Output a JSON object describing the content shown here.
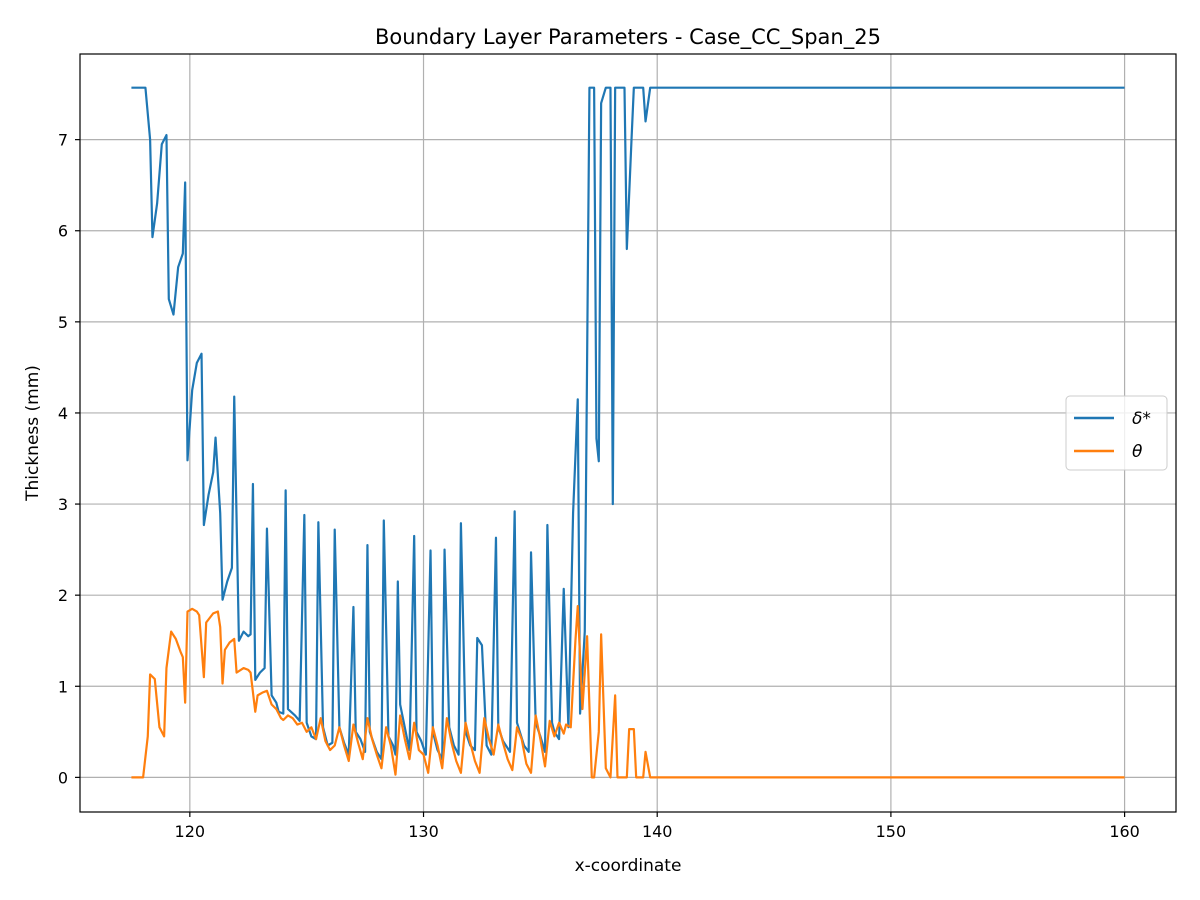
{
  "chart_data": {
    "type": "line",
    "title": "Boundary Layer Parameters - Case_CC_Span_25",
    "xlabel": "x-coordinate",
    "ylabel": "Thickness (mm)",
    "xlim": [
      115.3,
      162.2
    ],
    "ylim": [
      -0.38,
      7.94
    ],
    "x_ticks": [
      120,
      130,
      140,
      150,
      160
    ],
    "y_ticks": [
      0,
      1,
      2,
      3,
      4,
      5,
      6,
      7
    ],
    "grid": true,
    "legend_position": "center-right",
    "series": [
      {
        "name": "δ*",
        "color": "#1f77b4",
        "points": [
          [
            117.5,
            7.57
          ],
          [
            118.1,
            7.57
          ],
          [
            118.3,
            7.0
          ],
          [
            118.4,
            5.93
          ],
          [
            118.6,
            6.3
          ],
          [
            118.8,
            6.95
          ],
          [
            119.0,
            7.05
          ],
          [
            119.1,
            5.25
          ],
          [
            119.3,
            5.08
          ],
          [
            119.5,
            5.6
          ],
          [
            119.7,
            5.75
          ],
          [
            119.8,
            6.53
          ],
          [
            119.9,
            3.48
          ],
          [
            120.1,
            4.25
          ],
          [
            120.3,
            4.55
          ],
          [
            120.5,
            4.65
          ],
          [
            120.6,
            2.77
          ],
          [
            120.8,
            3.1
          ],
          [
            121.0,
            3.35
          ],
          [
            121.1,
            3.73
          ],
          [
            121.3,
            2.9
          ],
          [
            121.4,
            1.95
          ],
          [
            121.6,
            2.15
          ],
          [
            121.8,
            2.3
          ],
          [
            121.9,
            4.18
          ],
          [
            122.1,
            1.5
          ],
          [
            122.3,
            1.6
          ],
          [
            122.5,
            1.55
          ],
          [
            122.6,
            1.57
          ],
          [
            122.7,
            3.22
          ],
          [
            122.8,
            1.07
          ],
          [
            123.0,
            1.15
          ],
          [
            123.2,
            1.2
          ],
          [
            123.3,
            2.73
          ],
          [
            123.5,
            0.9
          ],
          [
            123.7,
            0.82
          ],
          [
            123.8,
            0.72
          ],
          [
            124.0,
            0.7
          ],
          [
            124.1,
            3.15
          ],
          [
            124.2,
            0.75
          ],
          [
            124.5,
            0.68
          ],
          [
            124.7,
            0.62
          ],
          [
            124.9,
            2.88
          ],
          [
            125.0,
            0.6
          ],
          [
            125.2,
            0.45
          ],
          [
            125.4,
            0.42
          ],
          [
            125.5,
            2.8
          ],
          [
            125.7,
            0.55
          ],
          [
            125.9,
            0.35
          ],
          [
            126.1,
            0.38
          ],
          [
            126.2,
            2.72
          ],
          [
            126.4,
            0.55
          ],
          [
            126.6,
            0.38
          ],
          [
            126.8,
            0.25
          ],
          [
            127.0,
            1.87
          ],
          [
            127.1,
            0.5
          ],
          [
            127.3,
            0.42
          ],
          [
            127.5,
            0.28
          ],
          [
            127.6,
            2.55
          ],
          [
            127.7,
            0.5
          ],
          [
            128.0,
            0.28
          ],
          [
            128.2,
            0.2
          ],
          [
            128.3,
            2.82
          ],
          [
            128.5,
            0.45
          ],
          [
            128.7,
            0.35
          ],
          [
            128.8,
            0.25
          ],
          [
            128.9,
            2.15
          ],
          [
            129.0,
            0.8
          ],
          [
            129.3,
            0.42
          ],
          [
            129.4,
            0.3
          ],
          [
            129.6,
            2.65
          ],
          [
            129.7,
            0.5
          ],
          [
            129.9,
            0.4
          ],
          [
            130.1,
            0.25
          ],
          [
            130.3,
            2.49
          ],
          [
            130.4,
            0.5
          ],
          [
            130.6,
            0.3
          ],
          [
            130.8,
            0.2
          ],
          [
            130.9,
            2.5
          ],
          [
            131.1,
            0.55
          ],
          [
            131.3,
            0.35
          ],
          [
            131.5,
            0.25
          ],
          [
            131.6,
            2.79
          ],
          [
            131.8,
            0.5
          ],
          [
            132.0,
            0.35
          ],
          [
            132.2,
            0.3
          ],
          [
            132.3,
            1.53
          ],
          [
            132.5,
            1.45
          ],
          [
            132.7,
            0.35
          ],
          [
            132.9,
            0.25
          ],
          [
            133.1,
            2.63
          ],
          [
            133.2,
            0.55
          ],
          [
            133.4,
            0.4
          ],
          [
            133.7,
            0.28
          ],
          [
            133.9,
            2.92
          ],
          [
            134.0,
            0.6
          ],
          [
            134.3,
            0.35
          ],
          [
            134.5,
            0.28
          ],
          [
            134.6,
            2.47
          ],
          [
            134.8,
            0.6
          ],
          [
            135.0,
            0.45
          ],
          [
            135.2,
            0.28
          ],
          [
            135.3,
            2.77
          ],
          [
            135.5,
            0.6
          ],
          [
            135.6,
            0.5
          ],
          [
            135.8,
            0.42
          ],
          [
            136.0,
            2.07
          ],
          [
            136.2,
            0.55
          ],
          [
            136.4,
            2.9
          ],
          [
            136.6,
            4.15
          ],
          [
            136.7,
            0.7
          ],
          [
            136.9,
            1.6
          ],
          [
            137.1,
            7.57
          ],
          [
            137.3,
            7.57
          ],
          [
            137.4,
            3.72
          ],
          [
            137.5,
            3.47
          ],
          [
            137.6,
            7.4
          ],
          [
            137.8,
            7.57
          ],
          [
            138.0,
            7.57
          ],
          [
            138.1,
            3.0
          ],
          [
            138.2,
            7.57
          ],
          [
            138.6,
            7.57
          ],
          [
            138.7,
            5.8
          ],
          [
            138.9,
            7.0
          ],
          [
            139.0,
            7.57
          ],
          [
            139.4,
            7.57
          ],
          [
            139.5,
            7.2
          ],
          [
            139.7,
            7.57
          ],
          [
            160.0,
            7.57
          ]
        ]
      },
      {
        "name": "θ",
        "color": "#ff7f0e",
        "points": [
          [
            117.5,
            0.0
          ],
          [
            118.0,
            0.0
          ],
          [
            118.2,
            0.45
          ],
          [
            118.3,
            1.13
          ],
          [
            118.5,
            1.08
          ],
          [
            118.7,
            0.55
          ],
          [
            118.9,
            0.45
          ],
          [
            119.0,
            1.2
          ],
          [
            119.2,
            1.6
          ],
          [
            119.4,
            1.52
          ],
          [
            119.6,
            1.38
          ],
          [
            119.7,
            1.32
          ],
          [
            119.8,
            0.82
          ],
          [
            119.9,
            1.82
          ],
          [
            120.1,
            1.85
          ],
          [
            120.3,
            1.82
          ],
          [
            120.4,
            1.78
          ],
          [
            120.6,
            1.1
          ],
          [
            120.7,
            1.7
          ],
          [
            121.0,
            1.8
          ],
          [
            121.2,
            1.82
          ],
          [
            121.3,
            1.65
          ],
          [
            121.4,
            1.03
          ],
          [
            121.5,
            1.4
          ],
          [
            121.7,
            1.48
          ],
          [
            121.9,
            1.52
          ],
          [
            122.0,
            1.15
          ],
          [
            122.3,
            1.2
          ],
          [
            122.5,
            1.18
          ],
          [
            122.6,
            1.15
          ],
          [
            122.8,
            0.72
          ],
          [
            122.9,
            0.9
          ],
          [
            123.1,
            0.93
          ],
          [
            123.3,
            0.95
          ],
          [
            123.5,
            0.8
          ],
          [
            123.7,
            0.75
          ],
          [
            123.9,
            0.65
          ],
          [
            124.0,
            0.63
          ],
          [
            124.2,
            0.68
          ],
          [
            124.4,
            0.65
          ],
          [
            124.6,
            0.58
          ],
          [
            124.8,
            0.6
          ],
          [
            125.0,
            0.5
          ],
          [
            125.2,
            0.55
          ],
          [
            125.4,
            0.42
          ],
          [
            125.6,
            0.65
          ],
          [
            125.8,
            0.4
          ],
          [
            126.0,
            0.3
          ],
          [
            126.2,
            0.35
          ],
          [
            126.4,
            0.55
          ],
          [
            126.6,
            0.35
          ],
          [
            126.8,
            0.18
          ],
          [
            127.0,
            0.58
          ],
          [
            127.2,
            0.38
          ],
          [
            127.4,
            0.2
          ],
          [
            127.6,
            0.65
          ],
          [
            127.8,
            0.42
          ],
          [
            128.0,
            0.25
          ],
          [
            128.2,
            0.1
          ],
          [
            128.4,
            0.55
          ],
          [
            128.6,
            0.35
          ],
          [
            128.8,
            0.03
          ],
          [
            129.0,
            0.68
          ],
          [
            129.2,
            0.42
          ],
          [
            129.4,
            0.2
          ],
          [
            129.6,
            0.6
          ],
          [
            129.8,
            0.3
          ],
          [
            130.0,
            0.25
          ],
          [
            130.2,
            0.05
          ],
          [
            130.4,
            0.55
          ],
          [
            130.6,
            0.35
          ],
          [
            130.8,
            0.1
          ],
          [
            131.0,
            0.65
          ],
          [
            131.2,
            0.38
          ],
          [
            131.4,
            0.18
          ],
          [
            131.6,
            0.05
          ],
          [
            131.8,
            0.6
          ],
          [
            132.0,
            0.38
          ],
          [
            132.2,
            0.18
          ],
          [
            132.4,
            0.05
          ],
          [
            132.6,
            0.65
          ],
          [
            132.8,
            0.42
          ],
          [
            133.0,
            0.25
          ],
          [
            133.2,
            0.58
          ],
          [
            133.4,
            0.38
          ],
          [
            133.6,
            0.2
          ],
          [
            133.8,
            0.08
          ],
          [
            134.0,
            0.55
          ],
          [
            134.2,
            0.42
          ],
          [
            134.4,
            0.15
          ],
          [
            134.6,
            0.05
          ],
          [
            134.8,
            0.68
          ],
          [
            135.0,
            0.42
          ],
          [
            135.2,
            0.12
          ],
          [
            135.4,
            0.62
          ],
          [
            135.6,
            0.45
          ],
          [
            135.8,
            0.6
          ],
          [
            136.0,
            0.48
          ],
          [
            136.1,
            0.58
          ],
          [
            136.3,
            0.55
          ],
          [
            136.5,
            1.5
          ],
          [
            136.6,
            1.88
          ],
          [
            136.8,
            0.75
          ],
          [
            137.0,
            1.55
          ],
          [
            137.2,
            0.0
          ],
          [
            137.3,
            0.0
          ],
          [
            137.5,
            0.5
          ],
          [
            137.6,
            1.57
          ],
          [
            137.8,
            0.1
          ],
          [
            138.0,
            0.0
          ],
          [
            138.2,
            0.9
          ],
          [
            138.3,
            0.0
          ],
          [
            138.7,
            0.0
          ],
          [
            138.8,
            0.53
          ],
          [
            139.0,
            0.53
          ],
          [
            139.1,
            0.0
          ],
          [
            139.4,
            0.0
          ],
          [
            139.5,
            0.28
          ],
          [
            139.7,
            0.0
          ],
          [
            160.0,
            0.0
          ]
        ]
      }
    ]
  }
}
